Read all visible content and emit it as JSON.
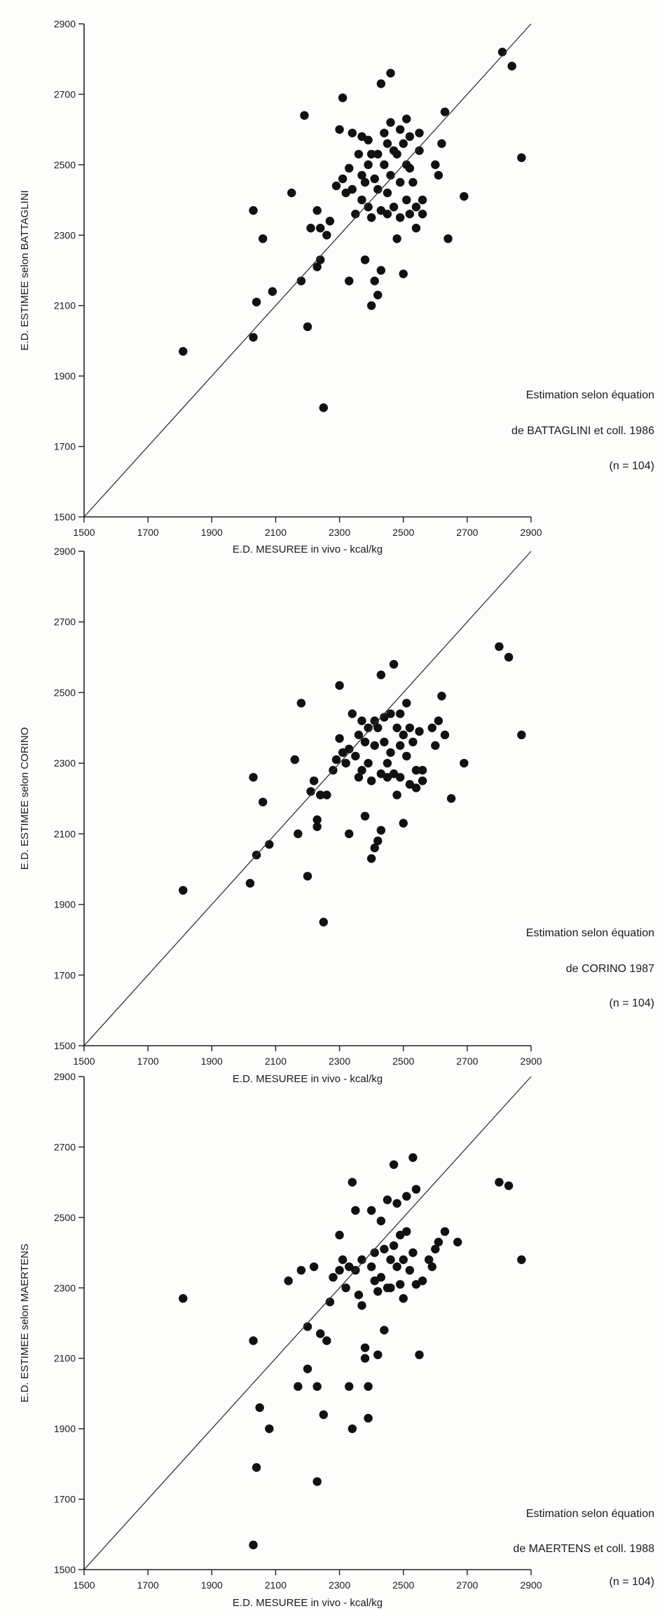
{
  "chart_data": [
    {
      "type": "scatter",
      "xlabel": "E.D. MESUREE in vivo  -  kcal/kg",
      "ylabel": "E.D. ESTIMEE selon BATTAGLINI",
      "xlim": [
        1500,
        2900
      ],
      "ylim": [
        1500,
        2900
      ],
      "xticks": [
        1500,
        1700,
        1900,
        2100,
        2300,
        2500,
        2700,
        2900
      ],
      "yticks": [
        1500,
        1700,
        1900,
        2100,
        2300,
        2500,
        2700,
        2900
      ],
      "reference_line": [
        [
          1500,
          1500
        ],
        [
          2900,
          2900
        ]
      ],
      "annotation": [
        "Estimation selon équation",
        "de BATTAGLINI et coll. 1986",
        "(n = 104)"
      ],
      "grid": false,
      "points": [
        [
          1810,
          1970
        ],
        [
          2030,
          2010
        ],
        [
          2030,
          2370
        ],
        [
          2040,
          2110
        ],
        [
          2060,
          2290
        ],
        [
          2090,
          2140
        ],
        [
          2150,
          2420
        ],
        [
          2180,
          2170
        ],
        [
          2190,
          2640
        ],
        [
          2200,
          2040
        ],
        [
          2210,
          2320
        ],
        [
          2230,
          2370
        ],
        [
          2230,
          2210
        ],
        [
          2240,
          2230
        ],
        [
          2240,
          2320
        ],
        [
          2250,
          1810
        ],
        [
          2260,
          2300
        ],
        [
          2270,
          2340
        ],
        [
          2290,
          2440
        ],
        [
          2300,
          2600
        ],
        [
          2310,
          2690
        ],
        [
          2310,
          2460
        ],
        [
          2320,
          2420
        ],
        [
          2330,
          2170
        ],
        [
          2330,
          2490
        ],
        [
          2340,
          2590
        ],
        [
          2340,
          2430
        ],
        [
          2350,
          2360
        ],
        [
          2360,
          2530
        ],
        [
          2370,
          2470
        ],
        [
          2370,
          2580
        ],
        [
          2370,
          2400
        ],
        [
          2380,
          2230
        ],
        [
          2380,
          2450
        ],
        [
          2390,
          2500
        ],
        [
          2390,
          2570
        ],
        [
          2390,
          2380
        ],
        [
          2400,
          2100
        ],
        [
          2400,
          2350
        ],
        [
          2400,
          2530
        ],
        [
          2410,
          2170
        ],
        [
          2410,
          2460
        ],
        [
          2420,
          2530
        ],
        [
          2420,
          2430
        ],
        [
          2420,
          2130
        ],
        [
          2430,
          2200
        ],
        [
          2430,
          2370
        ],
        [
          2430,
          2730
        ],
        [
          2440,
          2500
        ],
        [
          2440,
          2590
        ],
        [
          2450,
          2560
        ],
        [
          2450,
          2420
        ],
        [
          2450,
          2360
        ],
        [
          2460,
          2620
        ],
        [
          2460,
          2470
        ],
        [
          2460,
          2760
        ],
        [
          2470,
          2540
        ],
        [
          2470,
          2380
        ],
        [
          2480,
          2530
        ],
        [
          2480,
          2290
        ],
        [
          2490,
          2600
        ],
        [
          2490,
          2450
        ],
        [
          2490,
          2350
        ],
        [
          2500,
          2560
        ],
        [
          2500,
          2190
        ],
        [
          2510,
          2400
        ],
        [
          2510,
          2500
        ],
        [
          2510,
          2630
        ],
        [
          2520,
          2580
        ],
        [
          2520,
          2360
        ],
        [
          2520,
          2490
        ],
        [
          2530,
          2450
        ],
        [
          2540,
          2380
        ],
        [
          2540,
          2320
        ],
        [
          2550,
          2540
        ],
        [
          2550,
          2590
        ],
        [
          2560,
          2360
        ],
        [
          2560,
          2400
        ],
        [
          2600,
          2500
        ],
        [
          2610,
          2470
        ],
        [
          2620,
          2560
        ],
        [
          2630,
          2650
        ],
        [
          2640,
          2290
        ],
        [
          2690,
          2410
        ],
        [
          2810,
          2820
        ],
        [
          2840,
          2780
        ],
        [
          2870,
          2520
        ]
      ]
    },
    {
      "type": "scatter",
      "xlabel": "E.D. MESUREE in vivo  -  kcal/kg",
      "ylabel": "E.D. ESTIMEE selon CORINO",
      "xlim": [
        1500,
        2900
      ],
      "ylim": [
        1500,
        2900
      ],
      "xticks": [
        1500,
        1700,
        1900,
        2100,
        2300,
        2500,
        2700,
        2900
      ],
      "yticks": [
        1500,
        1700,
        1900,
        2100,
        2300,
        2500,
        2700,
        2900
      ],
      "reference_line": [
        [
          1500,
          1500
        ],
        [
          2900,
          2900
        ]
      ],
      "annotation": [
        "Estimation selon équation",
        "de CORINO 1987",
        "(n = 104)"
      ],
      "grid": false,
      "points": [
        [
          1810,
          1940
        ],
        [
          2020,
          1960
        ],
        [
          2030,
          2260
        ],
        [
          2040,
          2040
        ],
        [
          2060,
          2190
        ],
        [
          2080,
          2070
        ],
        [
          2160,
          2310
        ],
        [
          2170,
          2100
        ],
        [
          2180,
          2470
        ],
        [
          2200,
          1980
        ],
        [
          2210,
          2220
        ],
        [
          2220,
          2250
        ],
        [
          2230,
          2120
        ],
        [
          2230,
          2140
        ],
        [
          2240,
          2210
        ],
        [
          2250,
          1850
        ],
        [
          2260,
          2210
        ],
        [
          2280,
          2280
        ],
        [
          2290,
          2310
        ],
        [
          2300,
          2370
        ],
        [
          2300,
          2520
        ],
        [
          2310,
          2330
        ],
        [
          2320,
          2300
        ],
        [
          2330,
          2100
        ],
        [
          2330,
          2340
        ],
        [
          2340,
          2440
        ],
        [
          2350,
          2320
        ],
        [
          2360,
          2380
        ],
        [
          2360,
          2260
        ],
        [
          2370,
          2420
        ],
        [
          2370,
          2280
        ],
        [
          2380,
          2150
        ],
        [
          2380,
          2360
        ],
        [
          2390,
          2400
        ],
        [
          2390,
          2300
        ],
        [
          2400,
          2030
        ],
        [
          2400,
          2250
        ],
        [
          2410,
          2420
        ],
        [
          2410,
          2060
        ],
        [
          2410,
          2350
        ],
        [
          2420,
          2400
        ],
        [
          2420,
          2080
        ],
        [
          2430,
          2110
        ],
        [
          2430,
          2270
        ],
        [
          2430,
          2550
        ],
        [
          2440,
          2430
        ],
        [
          2440,
          2360
        ],
        [
          2450,
          2300
        ],
        [
          2450,
          2260
        ],
        [
          2460,
          2440
        ],
        [
          2460,
          2330
        ],
        [
          2470,
          2580
        ],
        [
          2470,
          2270
        ],
        [
          2480,
          2400
        ],
        [
          2480,
          2210
        ],
        [
          2490,
          2440
        ],
        [
          2490,
          2350
        ],
        [
          2490,
          2260
        ],
        [
          2500,
          2130
        ],
        [
          2500,
          2380
        ],
        [
          2510,
          2470
        ],
        [
          2510,
          2320
        ],
        [
          2520,
          2400
        ],
        [
          2520,
          2240
        ],
        [
          2530,
          2360
        ],
        [
          2540,
          2280
        ],
        [
          2540,
          2230
        ],
        [
          2550,
          2390
        ],
        [
          2560,
          2280
        ],
        [
          2560,
          2250
        ],
        [
          2590,
          2400
        ],
        [
          2600,
          2350
        ],
        [
          2610,
          2420
        ],
        [
          2620,
          2490
        ],
        [
          2630,
          2380
        ],
        [
          2650,
          2200
        ],
        [
          2690,
          2300
        ],
        [
          2800,
          2630
        ],
        [
          2830,
          2600
        ],
        [
          2870,
          2380
        ]
      ]
    },
    {
      "type": "scatter",
      "xlabel": "E.D. MESUREE in vivo  -  kcal/kg",
      "ylabel": "E.D. ESTIMEE selon MAERTENS",
      "xlim": [
        1500,
        2900
      ],
      "ylim": [
        1500,
        2900
      ],
      "xticks": [
        1500,
        1700,
        1900,
        2100,
        2300,
        2500,
        2700,
        2900
      ],
      "yticks": [
        1500,
        1700,
        1900,
        2100,
        2300,
        2500,
        2700,
        2900
      ],
      "reference_line": [
        [
          1500,
          1500
        ],
        [
          2900,
          2900
        ]
      ],
      "annotation": [
        "Estimation selon équation",
        "de MAERTENS et coll. 1988",
        "(n = 104)"
      ],
      "grid": false,
      "points": [
        [
          1810,
          2270
        ],
        [
          2030,
          1570
        ],
        [
          2030,
          2150
        ],
        [
          2040,
          1790
        ],
        [
          2050,
          1960
        ],
        [
          2080,
          1900
        ],
        [
          2140,
          2320
        ],
        [
          2170,
          2020
        ],
        [
          2180,
          2350
        ],
        [
          2200,
          2070
        ],
        [
          2200,
          2190
        ],
        [
          2220,
          2360
        ],
        [
          2230,
          1750
        ],
        [
          2230,
          2020
        ],
        [
          2240,
          2170
        ],
        [
          2250,
          1940
        ],
        [
          2260,
          2150
        ],
        [
          2270,
          2260
        ],
        [
          2280,
          2330
        ],
        [
          2300,
          2450
        ],
        [
          2300,
          2350
        ],
        [
          2310,
          2380
        ],
        [
          2320,
          2300
        ],
        [
          2330,
          2020
        ],
        [
          2330,
          2360
        ],
        [
          2340,
          2600
        ],
        [
          2340,
          1900
        ],
        [
          2350,
          2520
        ],
        [
          2350,
          2350
        ],
        [
          2360,
          2280
        ],
        [
          2370,
          2380
        ],
        [
          2370,
          2250
        ],
        [
          2380,
          2130
        ],
        [
          2380,
          2100
        ],
        [
          2390,
          2020
        ],
        [
          2390,
          1930
        ],
        [
          2400,
          2360
        ],
        [
          2400,
          2520
        ],
        [
          2410,
          2400
        ],
        [
          2410,
          2320
        ],
        [
          2420,
          2290
        ],
        [
          2420,
          2110
        ],
        [
          2430,
          2330
        ],
        [
          2430,
          2490
        ],
        [
          2440,
          2410
        ],
        [
          2440,
          2180
        ],
        [
          2450,
          2300
        ],
        [
          2450,
          2550
        ],
        [
          2460,
          2380
        ],
        [
          2460,
          2300
        ],
        [
          2470,
          2650
        ],
        [
          2470,
          2420
        ],
        [
          2480,
          2360
        ],
        [
          2480,
          2540
        ],
        [
          2490,
          2450
        ],
        [
          2490,
          2310
        ],
        [
          2500,
          2380
        ],
        [
          2500,
          2270
        ],
        [
          2510,
          2560
        ],
        [
          2510,
          2460
        ],
        [
          2520,
          2350
        ],
        [
          2530,
          2670
        ],
        [
          2530,
          2400
        ],
        [
          2540,
          2310
        ],
        [
          2540,
          2580
        ],
        [
          2550,
          2110
        ],
        [
          2560,
          2320
        ],
        [
          2580,
          2380
        ],
        [
          2590,
          2360
        ],
        [
          2600,
          2410
        ],
        [
          2610,
          2430
        ],
        [
          2630,
          2460
        ],
        [
          2670,
          2430
        ],
        [
          2800,
          2600
        ],
        [
          2830,
          2590
        ],
        [
          2870,
          2380
        ]
      ]
    }
  ]
}
